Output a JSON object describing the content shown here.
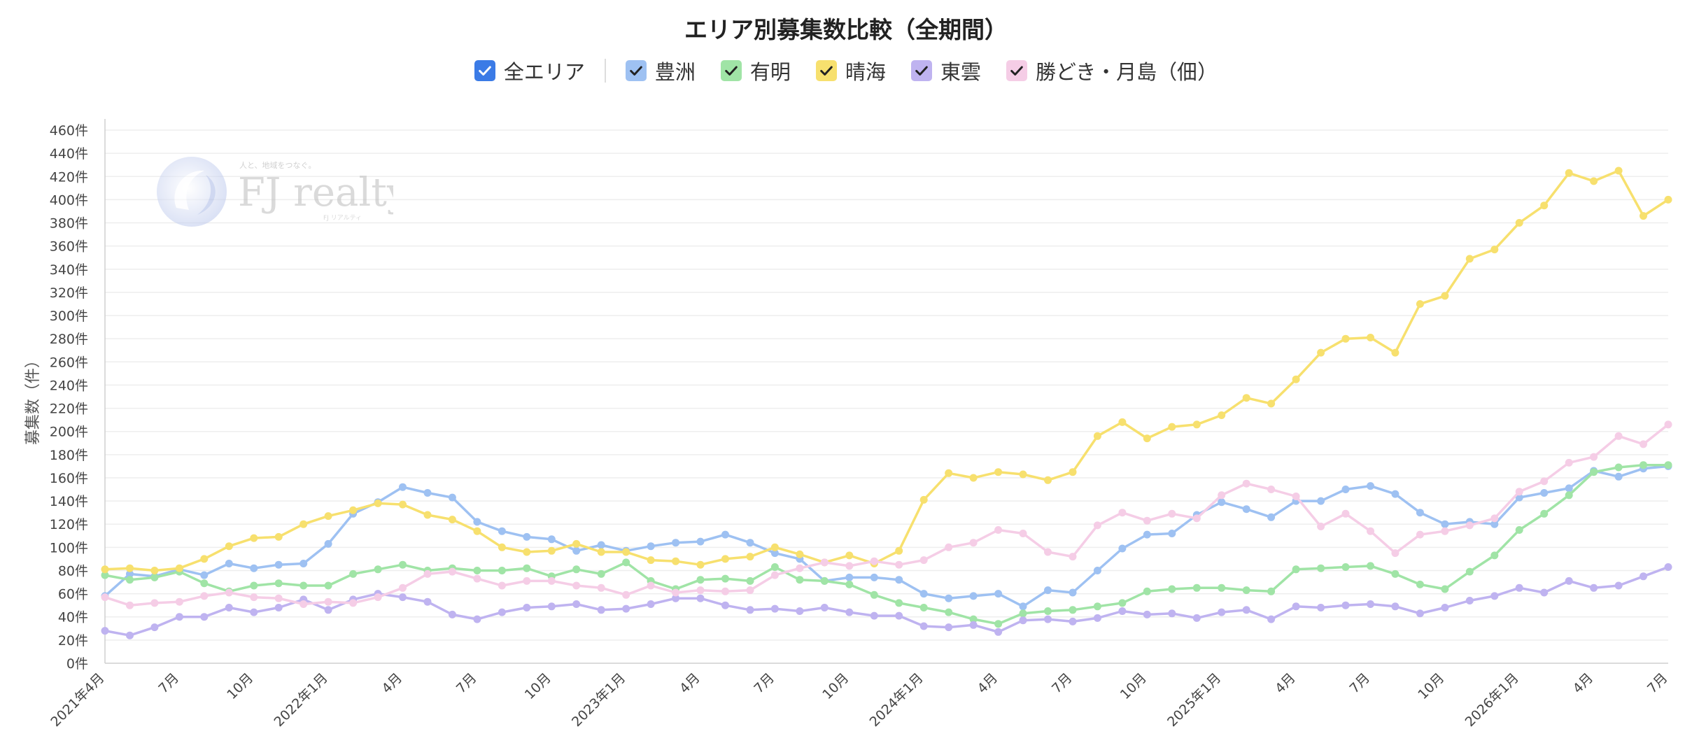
{
  "chart_data": {
    "type": "line",
    "title": "エリア別募集数比較（全期間）",
    "ylabel": "募集数（件）",
    "xlabel": "",
    "ylim": [
      0,
      460
    ],
    "yticks": [
      0,
      20,
      40,
      60,
      80,
      100,
      120,
      140,
      160,
      180,
      200,
      220,
      240,
      260,
      280,
      300,
      320,
      340,
      360,
      380,
      400,
      420,
      440,
      460
    ],
    "ytick_suffix": "件",
    "grid": true,
    "legend_position": "top-center",
    "x_tick_labels": [
      {
        "index": 0,
        "label": "2021年4月"
      },
      {
        "index": 3,
        "label": "7月"
      },
      {
        "index": 6,
        "label": "10月"
      },
      {
        "index": 9,
        "label": "2022年1月"
      },
      {
        "index": 12,
        "label": "4月"
      },
      {
        "index": 15,
        "label": "7月"
      },
      {
        "index": 18,
        "label": "10月"
      },
      {
        "index": 21,
        "label": "2023年1月"
      },
      {
        "index": 24,
        "label": "4月"
      },
      {
        "index": 27,
        "label": "7月"
      },
      {
        "index": 30,
        "label": "10月"
      },
      {
        "index": 33,
        "label": "2024年1月"
      },
      {
        "index": 36,
        "label": "4月"
      },
      {
        "index": 39,
        "label": "7月"
      },
      {
        "index": 42,
        "label": "10月"
      },
      {
        "index": 45,
        "label": "2025年1月"
      },
      {
        "index": 48,
        "label": "4月"
      },
      {
        "index": 51,
        "label": "7月"
      },
      {
        "index": 54,
        "label": "10月"
      },
      {
        "index": 57,
        "label": "2026年1月"
      },
      {
        "index": 60,
        "label": "4月"
      },
      {
        "index": 63,
        "label": "7月"
      }
    ],
    "series": [
      {
        "name": "豊洲",
        "color": "#9ec1f2",
        "values": [
          58,
          77,
          75,
          81,
          76,
          86,
          82,
          85,
          86,
          103,
          129,
          139,
          152,
          147,
          143,
          122,
          114,
          109,
          107,
          97,
          102,
          97,
          101,
          104,
          105,
          111,
          104,
          95,
          90,
          71,
          74,
          74,
          72,
          60,
          56,
          58,
          60,
          49,
          63,
          61,
          80,
          99,
          111,
          112,
          128,
          139,
          133,
          126,
          140,
          140,
          150,
          153,
          146,
          130,
          120,
          122,
          120,
          143,
          147,
          151,
          166,
          161,
          168,
          170
        ]
      },
      {
        "name": "有明",
        "color": "#a0e4a6",
        "values": [
          76,
          72,
          74,
          79,
          69,
          62,
          67,
          69,
          67,
          67,
          77,
          81,
          85,
          80,
          82,
          80,
          80,
          82,
          75,
          81,
          77,
          87,
          71,
          64,
          72,
          73,
          71,
          83,
          72,
          71,
          68,
          59,
          52,
          48,
          44,
          38,
          34,
          43,
          45,
          46,
          49,
          52,
          62,
          64,
          65,
          65,
          63,
          62,
          81,
          82,
          83,
          84,
          77,
          68,
          64,
          79,
          93,
          115,
          129,
          145,
          165,
          169,
          171,
          171
        ]
      },
      {
        "name": "晴海",
        "color": "#f7e06e",
        "values": [
          81,
          82,
          80,
          82,
          90,
          101,
          108,
          109,
          120,
          127,
          132,
          138,
          137,
          128,
          124,
          114,
          100,
          96,
          97,
          103,
          96,
          96,
          89,
          88,
          85,
          90,
          92,
          100,
          94,
          87,
          93,
          86,
          97,
          141,
          164,
          160,
          165,
          163,
          158,
          165,
          196,
          208,
          194,
          204,
          206,
          214,
          229,
          224,
          245,
          268,
          280,
          281,
          268,
          310,
          317,
          349,
          357,
          380,
          395,
          423,
          416,
          425,
          386,
          400
        ]
      },
      {
        "name": "東雲",
        "color": "#bfb3f0",
        "values": [
          28,
          24,
          31,
          40,
          40,
          48,
          44,
          48,
          55,
          46,
          55,
          60,
          57,
          53,
          42,
          38,
          44,
          48,
          49,
          51,
          46,
          47,
          51,
          56,
          56,
          50,
          46,
          47,
          45,
          48,
          44,
          41,
          41,
          32,
          31,
          33,
          27,
          37,
          38,
          36,
          39,
          45,
          42,
          43,
          39,
          44,
          46,
          38,
          49,
          48,
          50,
          51,
          49,
          43,
          48,
          54,
          58,
          65,
          61,
          71,
          65,
          67,
          75,
          83
        ]
      },
      {
        "name": "勝どき・月島（佃）",
        "color": "#f5cde6",
        "values": [
          57,
          50,
          52,
          53,
          58,
          61,
          57,
          56,
          51,
          53,
          52,
          57,
          65,
          77,
          79,
          73,
          67,
          71,
          71,
          67,
          65,
          59,
          67,
          61,
          63,
          62,
          63,
          76,
          82,
          87,
          84,
          88,
          85,
          89,
          100,
          104,
          115,
          112,
          96,
          92,
          119,
          130,
          123,
          129,
          125,
          145,
          155,
          150,
          144,
          118,
          129,
          114,
          95,
          111,
          114,
          119,
          125,
          148,
          157,
          173,
          178,
          196,
          189,
          206
        ]
      }
    ]
  },
  "legend": {
    "all_label": "全エリア",
    "all_color": "#3b7be6",
    "items": [
      {
        "label": "豊洲",
        "color": "#9ec1f2"
      },
      {
        "label": "有明",
        "color": "#a0e4a6"
      },
      {
        "label": "晴海",
        "color": "#f7e06e"
      },
      {
        "label": "東雲",
        "color": "#bfb3f0"
      },
      {
        "label": "勝どき・月島（佃）",
        "color": "#f5cde6"
      }
    ]
  },
  "watermark": {
    "brand": "FJ realty",
    "tagline": "人と、地域をつなぐ。",
    "sub": "FJ リアルティ"
  }
}
